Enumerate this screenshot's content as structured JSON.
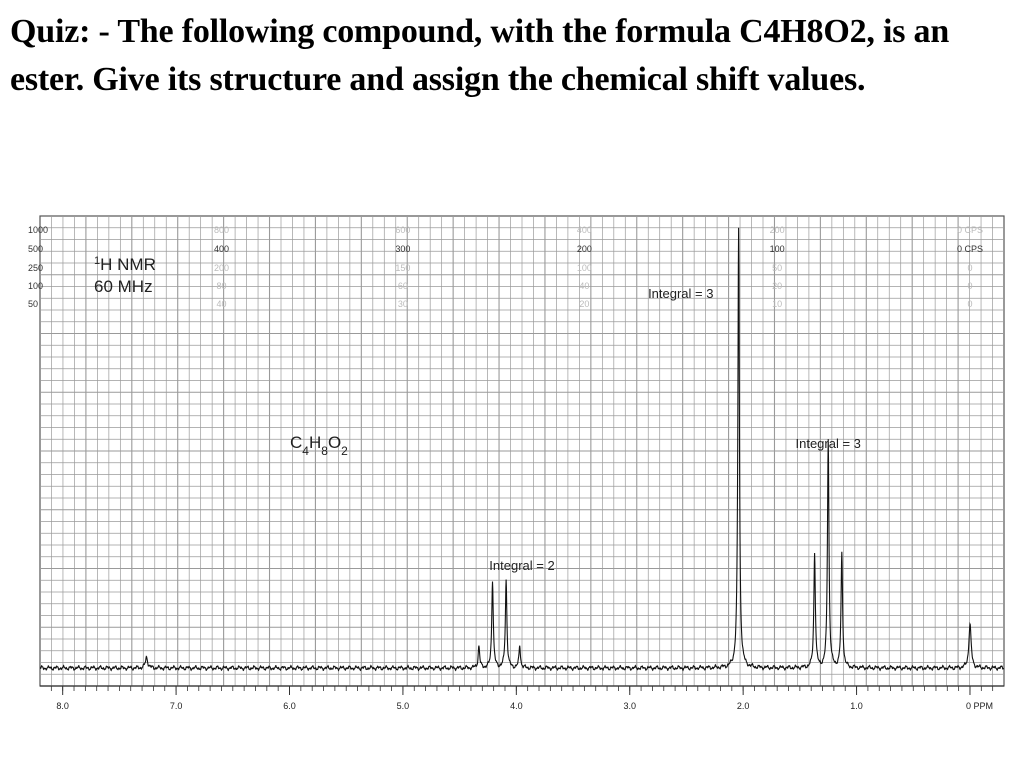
{
  "quiz": {
    "text": "Quiz: - The following compound, with the formula C4H8O2, is an ester. Give its structure and assign the chemical shift values."
  },
  "chart_data": {
    "type": "line",
    "spectrum_title_line1": "1H NMR",
    "spectrum_title_line2": "60 MHz",
    "formula": "C4H8O2",
    "xlabel_unit": "PPM",
    "xlim": [
      8.2,
      -0.3
    ],
    "x_ticks": [
      "8.0",
      "7.0",
      "6.0",
      "5.0",
      "4.0",
      "3.0",
      "2.0",
      "1.0",
      "0"
    ],
    "x_tick_values": [
      8,
      7,
      6,
      5,
      4,
      3,
      2,
      1,
      0
    ],
    "cps_scale": {
      "sweep_widths": [
        "1000",
        "500",
        "250",
        "100",
        "50"
      ],
      "columns": [
        {
          "ppm": 6.6,
          "labels": [
            "800",
            "400",
            "200",
            "80",
            "40"
          ]
        },
        {
          "ppm": 5.0,
          "labels": [
            "600",
            "300",
            "150",
            "60",
            "30"
          ]
        },
        {
          "ppm": 3.4,
          "labels": [
            "400",
            "200",
            "100",
            "40",
            "20"
          ]
        },
        {
          "ppm": 1.7,
          "labels": [
            "200",
            "100",
            "50",
            "20",
            "10"
          ]
        },
        {
          "ppm": 0.0,
          "labels": [
            "0 CPS",
            "0 CPS",
            "0",
            "0",
            "0"
          ]
        }
      ]
    },
    "peaks": [
      {
        "ppm": 7.26,
        "height": 0.025,
        "width": 0.012
      },
      {
        "ppm": 4.33,
        "height": 0.05,
        "width": 0.008
      },
      {
        "ppm": 4.21,
        "height": 0.2,
        "width": 0.008
      },
      {
        "ppm": 4.09,
        "height": 0.2,
        "width": 0.008
      },
      {
        "ppm": 3.97,
        "height": 0.05,
        "width": 0.008
      },
      {
        "ppm": 2.04,
        "height": 1.0,
        "width": 0.008
      },
      {
        "ppm": 1.37,
        "height": 0.26,
        "width": 0.008
      },
      {
        "ppm": 1.25,
        "height": 0.52,
        "width": 0.008
      },
      {
        "ppm": 1.13,
        "height": 0.26,
        "width": 0.008
      },
      {
        "ppm": 0.0,
        "height": 0.1,
        "width": 0.012
      }
    ],
    "annotations": [
      {
        "text": "Integral = 2",
        "ppm": 3.95
      },
      {
        "text": "Integral = 3",
        "ppm": 2.55
      },
      {
        "text": "Integral = 3",
        "ppm": 1.25
      }
    ]
  }
}
